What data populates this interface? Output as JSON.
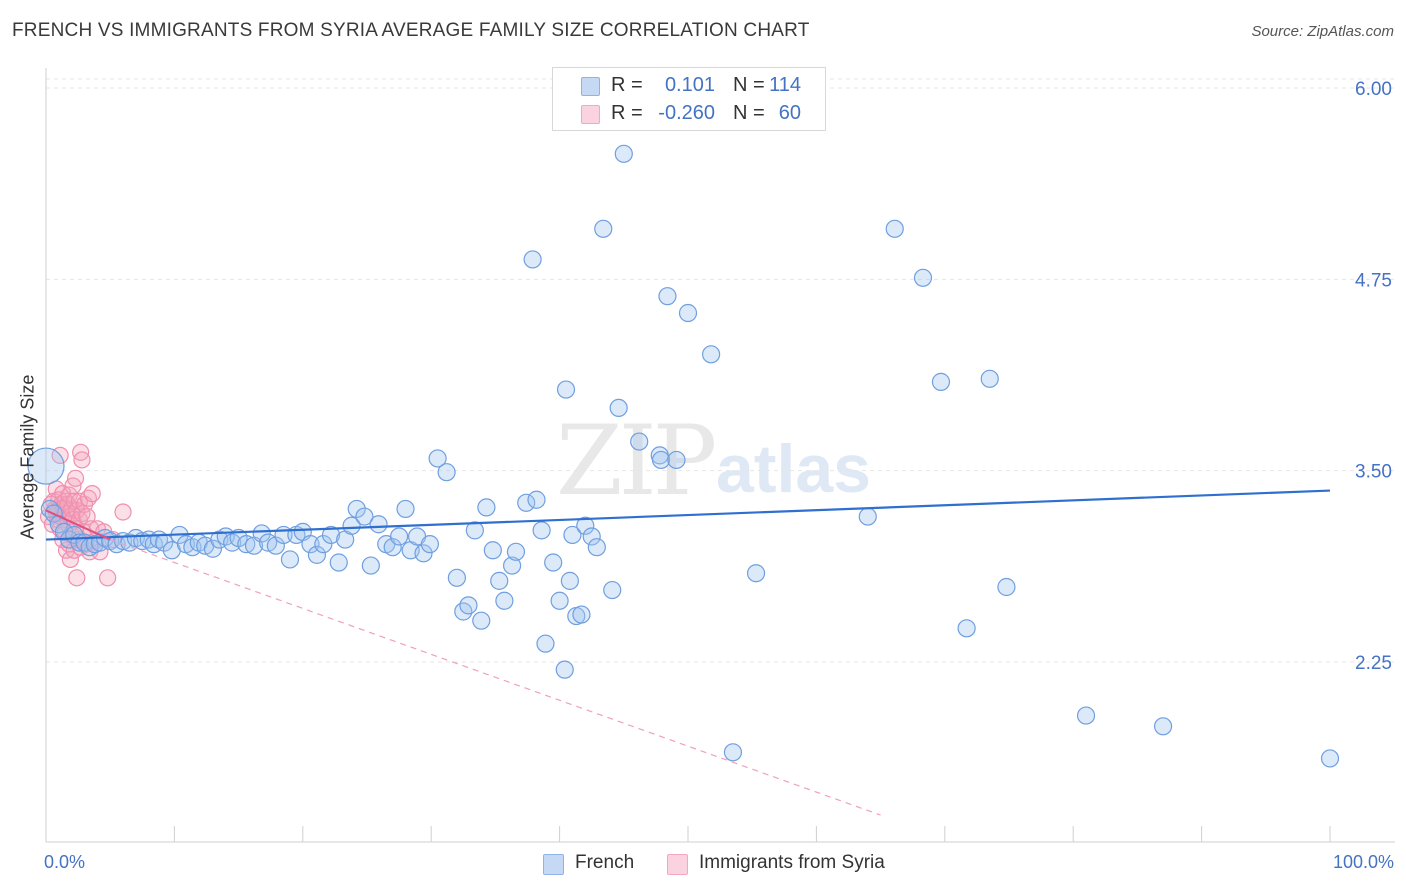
{
  "title": "FRENCH VS IMMIGRANTS FROM SYRIA AVERAGE FAMILY SIZE CORRELATION CHART",
  "source": "Source: ZipAtlas.com",
  "watermark": {
    "zip": "ZIP",
    "atlas": "atlas"
  },
  "legend_top": [
    {
      "r_label": "R =",
      "r_value": "0.101",
      "n_label": "N =",
      "n_value": "114",
      "color": "#8fb3e8"
    },
    {
      "r_label": "R =",
      "r_value": "-0.260",
      "n_label": "N =",
      "n_value": "60",
      "color": "#f4a7bd"
    }
  ],
  "legend_bottom": [
    {
      "label": "French",
      "color": "#8fb3e8"
    },
    {
      "label": "Immigrants from Syria",
      "color": "#f4a7bd"
    }
  ],
  "colors": {
    "french": "#5b8fd6",
    "syria": "#ea6a92",
    "tick_label": "#4472c4",
    "grid": "#e6e6e6"
  },
  "chart_data": {
    "type": "scatter",
    "ylabel": "Average Family Size",
    "x_tick_labels": {
      "min": "0.0%",
      "max": "100.0%"
    },
    "y_ticks": [
      {
        "value": 2.25,
        "label": "2.25"
      },
      {
        "value": 3.5,
        "label": "3.50"
      },
      {
        "value": 4.75,
        "label": "4.75"
      },
      {
        "value": 6.0,
        "label": "6.00"
      }
    ],
    "xlim": [
      0,
      100
    ],
    "ylim": [
      1.25,
      6.25
    ],
    "grid": "horizontal",
    "legend_placement": "top-center",
    "series": [
      {
        "name": "French",
        "trend": {
          "x0": 0,
          "y0": 3.05,
          "x1": 100,
          "y1": 3.37
        },
        "points": [
          [
            0.0,
            3.53
          ],
          [
            0.3,
            3.25
          ],
          [
            0.6,
            3.22
          ],
          [
            1.0,
            3.15
          ],
          [
            1.4,
            3.1
          ],
          [
            1.8,
            3.05
          ],
          [
            2.2,
            3.08
          ],
          [
            2.6,
            3.03
          ],
          [
            3.0,
            3.03
          ],
          [
            3.4,
            3.0
          ],
          [
            3.8,
            3.02
          ],
          [
            4.2,
            3.03
          ],
          [
            4.6,
            3.06
          ],
          [
            5.0,
            3.04
          ],
          [
            5.5,
            3.02
          ],
          [
            6.0,
            3.04
          ],
          [
            6.5,
            3.03
          ],
          [
            7.0,
            3.06
          ],
          [
            7.5,
            3.04
          ],
          [
            8.0,
            3.05
          ],
          [
            8.4,
            3.02
          ],
          [
            8.8,
            3.05
          ],
          [
            9.2,
            3.03
          ],
          [
            9.8,
            2.98
          ],
          [
            10.4,
            3.08
          ],
          [
            10.9,
            3.02
          ],
          [
            11.4,
            3.0
          ],
          [
            11.9,
            3.03
          ],
          [
            12.4,
            3.01
          ],
          [
            13.0,
            2.99
          ],
          [
            13.5,
            3.05
          ],
          [
            14.0,
            3.07
          ],
          [
            14.5,
            3.03
          ],
          [
            15.0,
            3.06
          ],
          [
            15.6,
            3.02
          ],
          [
            16.2,
            3.01
          ],
          [
            16.8,
            3.09
          ],
          [
            17.3,
            3.03
          ],
          [
            17.9,
            3.01
          ],
          [
            18.5,
            3.08
          ],
          [
            19.0,
            2.92
          ],
          [
            19.5,
            3.08
          ],
          [
            20.0,
            3.1
          ],
          [
            20.6,
            3.02
          ],
          [
            21.1,
            2.95
          ],
          [
            21.6,
            3.02
          ],
          [
            22.2,
            3.08
          ],
          [
            22.8,
            2.9
          ],
          [
            23.3,
            3.05
          ],
          [
            23.8,
            3.14
          ],
          [
            24.2,
            3.25
          ],
          [
            24.8,
            3.2
          ],
          [
            25.3,
            2.88
          ],
          [
            25.9,
            3.15
          ],
          [
            26.5,
            3.02
          ],
          [
            27.0,
            3.0
          ],
          [
            27.5,
            3.07
          ],
          [
            28.0,
            3.25
          ],
          [
            28.4,
            2.98
          ],
          [
            28.9,
            3.07
          ],
          [
            29.4,
            2.96
          ],
          [
            29.9,
            3.02
          ],
          [
            30.5,
            3.58
          ],
          [
            31.2,
            3.49
          ],
          [
            32.0,
            2.8
          ],
          [
            32.5,
            2.58
          ],
          [
            32.9,
            2.62
          ],
          [
            33.4,
            3.11
          ],
          [
            33.9,
            2.52
          ],
          [
            34.3,
            3.26
          ],
          [
            34.8,
            2.98
          ],
          [
            35.3,
            2.78
          ],
          [
            35.7,
            2.65
          ],
          [
            36.3,
            2.88
          ],
          [
            36.6,
            2.97
          ],
          [
            37.4,
            3.29
          ],
          [
            37.9,
            4.88
          ],
          [
            38.2,
            3.31
          ],
          [
            38.6,
            3.11
          ],
          [
            38.9,
            2.37
          ],
          [
            39.5,
            2.9
          ],
          [
            40.0,
            2.65
          ],
          [
            40.4,
            2.2
          ],
          [
            40.5,
            4.03
          ],
          [
            40.8,
            2.78
          ],
          [
            41.0,
            3.08
          ],
          [
            41.3,
            2.55
          ],
          [
            41.7,
            2.56
          ],
          [
            42.0,
            3.14
          ],
          [
            42.5,
            3.07
          ],
          [
            42.9,
            3.0
          ],
          [
            43.4,
            5.08
          ],
          [
            44.1,
            2.72
          ],
          [
            44.6,
            3.91
          ],
          [
            45.0,
            5.57
          ],
          [
            46.2,
            3.69
          ],
          [
            47.8,
            3.6
          ],
          [
            47.9,
            3.57
          ],
          [
            48.4,
            4.64
          ],
          [
            49.1,
            3.57
          ],
          [
            50.0,
            4.53
          ],
          [
            51.8,
            4.26
          ],
          [
            53.5,
            1.66
          ],
          [
            55.3,
            2.83
          ],
          [
            64.0,
            3.2
          ],
          [
            66.1,
            5.08
          ],
          [
            68.3,
            4.76
          ],
          [
            69.7,
            4.08
          ],
          [
            71.7,
            2.47
          ],
          [
            73.5,
            4.1
          ],
          [
            74.8,
            2.74
          ],
          [
            81.0,
            1.9
          ],
          [
            87.0,
            1.83
          ],
          [
            100.0,
            1.62
          ]
        ]
      },
      {
        "name": "Immigrants from Syria",
        "trend": {
          "x0": 0,
          "y0": 3.24,
          "x1": 5,
          "y1": 3.05,
          "dash_x1": 65,
          "dash_y1": 1.25
        },
        "points": [
          [
            0.2,
            3.2
          ],
          [
            0.4,
            3.28
          ],
          [
            0.5,
            3.15
          ],
          [
            0.6,
            3.3
          ],
          [
            0.7,
            3.25
          ],
          [
            0.8,
            3.22
          ],
          [
            0.8,
            3.38
          ],
          [
            0.9,
            3.18
          ],
          [
            1.0,
            3.31
          ],
          [
            1.0,
            3.24
          ],
          [
            1.1,
            3.12
          ],
          [
            1.1,
            3.6
          ],
          [
            1.2,
            3.28
          ],
          [
            1.2,
            3.2
          ],
          [
            1.3,
            3.35
          ],
          [
            1.3,
            3.05
          ],
          [
            1.4,
            3.26
          ],
          [
            1.4,
            3.18
          ],
          [
            1.5,
            3.3
          ],
          [
            1.5,
            3.1
          ],
          [
            1.6,
            3.22
          ],
          [
            1.6,
            2.98
          ],
          [
            1.7,
            3.28
          ],
          [
            1.7,
            3.15
          ],
          [
            1.8,
            3.02
          ],
          [
            1.8,
            3.34
          ],
          [
            1.9,
            3.2
          ],
          [
            1.9,
            2.92
          ],
          [
            2.0,
            3.25
          ],
          [
            2.0,
            3.08
          ],
          [
            2.1,
            3.4
          ],
          [
            2.1,
            3.18
          ],
          [
            2.2,
            2.98
          ],
          [
            2.2,
            3.3
          ],
          [
            2.3,
            3.12
          ],
          [
            2.3,
            3.45
          ],
          [
            2.4,
            3.24
          ],
          [
            2.4,
            2.8
          ],
          [
            2.5,
            3.05
          ],
          [
            2.6,
            3.3
          ],
          [
            2.6,
            3.18
          ],
          [
            2.7,
            3.62
          ],
          [
            2.7,
            3.0
          ],
          [
            2.8,
            3.22
          ],
          [
            2.8,
            3.57
          ],
          [
            2.9,
            3.1
          ],
          [
            3.0,
            3.28
          ],
          [
            3.1,
            3.02
          ],
          [
            3.2,
            3.2
          ],
          [
            3.3,
            3.32
          ],
          [
            3.4,
            2.97
          ],
          [
            3.5,
            3.12
          ],
          [
            3.6,
            3.35
          ],
          [
            3.8,
            3.04
          ],
          [
            4.0,
            3.12
          ],
          [
            4.2,
            2.97
          ],
          [
            4.5,
            3.1
          ],
          [
            4.8,
            2.8
          ],
          [
            5.2,
            3.05
          ],
          [
            6.0,
            3.23
          ]
        ]
      }
    ]
  }
}
